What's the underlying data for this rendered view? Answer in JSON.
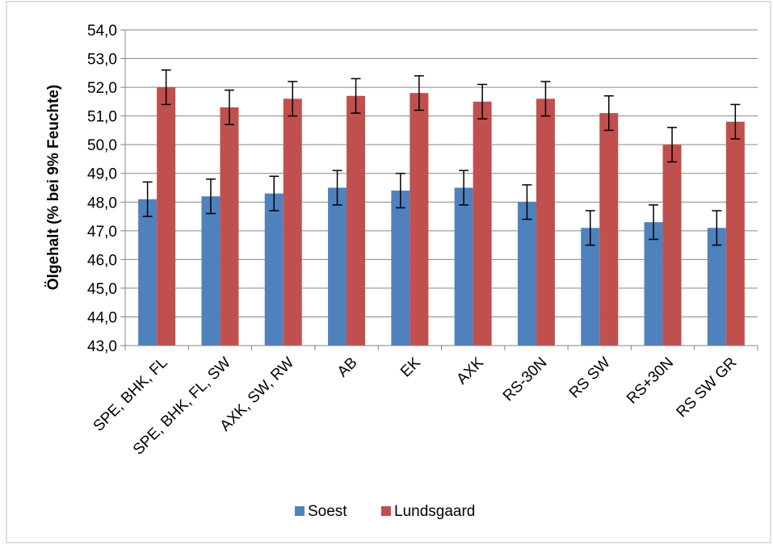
{
  "chart_data": {
    "type": "bar",
    "title": "",
    "xlabel": "",
    "ylabel": "Ölgehalt (% bei 9% Feuchte)",
    "ylim": [
      43.0,
      54.0
    ],
    "y_ticks": [
      "43,0",
      "44,0",
      "45,0",
      "46,0",
      "47,0",
      "48,0",
      "49,0",
      "50,0",
      "51,0",
      "52,0",
      "53,0",
      "54,0"
    ],
    "grid": true,
    "legend_position": "bottom",
    "categories": [
      "SPE, BHK, FL",
      "SPE, BHK, FL, SW",
      "AXK, SW, RW",
      "AB",
      "EK",
      "AXK",
      "RS-30N",
      "RS SW",
      "RS+30N",
      "RS SW GR"
    ],
    "series": [
      {
        "name": "Soest",
        "color": "#4f81bd",
        "values": [
          48.1,
          48.2,
          48.3,
          48.5,
          48.4,
          48.5,
          48.0,
          47.1,
          47.3,
          47.1
        ],
        "error": [
          0.6,
          0.6,
          0.6,
          0.6,
          0.6,
          0.6,
          0.6,
          0.6,
          0.6,
          0.6
        ]
      },
      {
        "name": "Lundsgaard",
        "color": "#c0504d",
        "values": [
          52.0,
          51.3,
          51.6,
          51.7,
          51.8,
          51.5,
          51.6,
          51.1,
          50.0,
          50.8
        ],
        "error": [
          0.6,
          0.6,
          0.6,
          0.6,
          0.6,
          0.6,
          0.6,
          0.6,
          0.6,
          0.6
        ]
      }
    ]
  }
}
